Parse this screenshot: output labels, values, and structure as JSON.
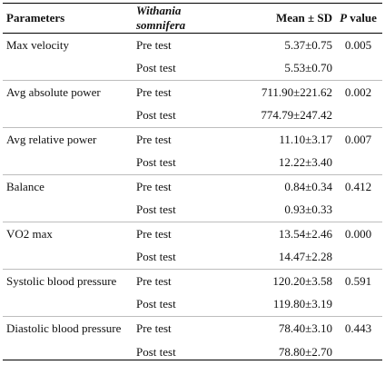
{
  "header": {
    "parameters": "Parameters",
    "species": "Withania somnifera",
    "mean_sd": "Mean ± SD",
    "p_letter": "P",
    "p_value_word": " value"
  },
  "rows": [
    {
      "parameter": "Max velocity",
      "test": "Pre test",
      "mean": "5.37±0.75",
      "p": "0.005"
    },
    {
      "parameter": "",
      "test": "Post test",
      "mean": "5.53±0.70",
      "p": ""
    },
    {
      "parameter": "Avg absolute power",
      "test": "Pre test",
      "mean": "711.90±221.62",
      "p": "0.002"
    },
    {
      "parameter": "",
      "test": "Post test",
      "mean": "774.79±247.42",
      "p": ""
    },
    {
      "parameter": "Avg relative power",
      "test": "Pre test",
      "mean": "11.10±3.17",
      "p": "0.007"
    },
    {
      "parameter": "",
      "test": "Post test",
      "mean": "12.22±3.40",
      "p": ""
    },
    {
      "parameter": "Balance",
      "test": "Pre test",
      "mean": "0.84±0.34",
      "p": "0.412"
    },
    {
      "parameter": "",
      "test": "Post test",
      "mean": "0.93±0.33",
      "p": ""
    },
    {
      "parameter": "VO2 max",
      "test": "Pre test",
      "mean": "13.54±2.46",
      "p": "0.000"
    },
    {
      "parameter": "",
      "test": "Post test",
      "mean": "14.47±2.28",
      "p": ""
    },
    {
      "parameter": "Systolic blood pressure",
      "test": "Pre test",
      "mean": "120.20±3.58",
      "p": "0.591"
    },
    {
      "parameter": "",
      "test": "Post test",
      "mean": "119.80±3.19",
      "p": ""
    },
    {
      "parameter": "Diastolic blood pressure",
      "test": "Pre test",
      "mean": "78.40±3.10",
      "p": "0.443"
    },
    {
      "parameter": "",
      "test": "Post test",
      "mean": "78.80±2.70",
      "p": ""
    }
  ]
}
